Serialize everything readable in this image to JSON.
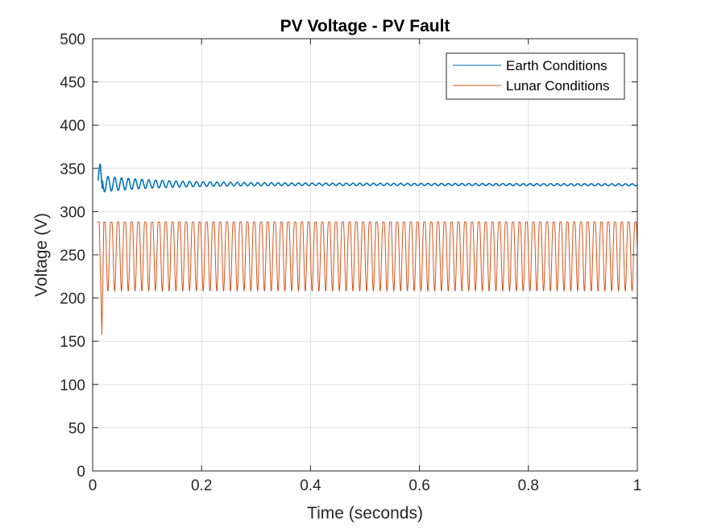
{
  "chart_data": {
    "type": "line",
    "title": "PV Voltage - PV Fault",
    "xlabel": "Time (seconds)",
    "ylabel": "Voltage (V)",
    "xlim": [
      0,
      1
    ],
    "ylim": [
      0,
      500
    ],
    "xticks": [
      0,
      0.2,
      0.4,
      0.6,
      0.8,
      1
    ],
    "xtick_labels": [
      "0",
      "0.2",
      "0.4",
      "0.6",
      "0.8",
      "1"
    ],
    "yticks": [
      0,
      50,
      100,
      150,
      200,
      250,
      300,
      350,
      400,
      450,
      500
    ],
    "ytick_labels": [
      "0",
      "50",
      "100",
      "150",
      "200",
      "250",
      "300",
      "350",
      "400",
      "450",
      "500"
    ],
    "grid": true,
    "legend_position": "top-right",
    "series": [
      {
        "name": "Earth Conditions",
        "color": "#0072BD",
        "description_points": {
          "start_t": 0.01,
          "mean": 332,
          "initial_peak": 355,
          "initial_trough": 323,
          "settle_time": 0.4,
          "oscillation_period": 0.0125
        }
      },
      {
        "name": "Lunar Conditions",
        "color": "#D95319",
        "description_points": {
          "start_t": 0.008,
          "max": 288,
          "min": 208,
          "initial_dip": 158,
          "oscillation_period": 0.0125
        }
      }
    ]
  }
}
